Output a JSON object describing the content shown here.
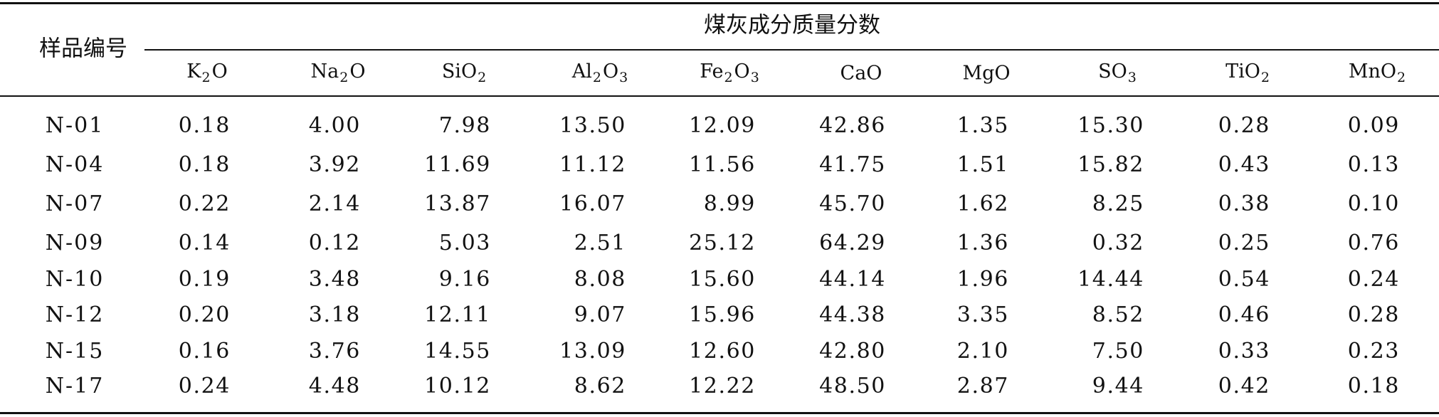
{
  "table": {
    "sample_header": "样品编号",
    "group_header": "煤灰成分质量分数",
    "columns": [
      {
        "base": "K",
        "sub": "2",
        "tail": "O"
      },
      {
        "base": "Na",
        "sub": "2",
        "tail": "O"
      },
      {
        "base": "SiO",
        "sub": "2",
        "tail": ""
      },
      {
        "base": "Al",
        "sub": "2",
        "tail": "O",
        "sub2": "3"
      },
      {
        "base": "Fe",
        "sub": "2",
        "tail": "O",
        "sub2": "3"
      },
      {
        "base": "CaO",
        "sub": "",
        "tail": ""
      },
      {
        "base": "MgO",
        "sub": "",
        "tail": ""
      },
      {
        "base": "SO",
        "sub": "3",
        "tail": ""
      },
      {
        "base": "TiO",
        "sub": "2",
        "tail": ""
      },
      {
        "base": "MnO",
        "sub": "2",
        "tail": ""
      }
    ],
    "rows": [
      {
        "sample": "N-01",
        "values": [
          "0.18",
          "4.00",
          "7.98",
          "13.50",
          "12.09",
          "42.86",
          "1.35",
          "15.30",
          "0.28",
          "0.09"
        ]
      },
      {
        "sample": "N-04",
        "values": [
          "0.18",
          "3.92",
          "11.69",
          "11.12",
          "11.56",
          "41.75",
          "1.51",
          "15.82",
          "0.43",
          "0.13"
        ]
      },
      {
        "sample": "N-07",
        "values": [
          "0.22",
          "2.14",
          "13.87",
          "16.07",
          "8.99",
          "45.70",
          "1.62",
          "8.25",
          "0.38",
          "0.10"
        ]
      },
      {
        "sample": "N-09",
        "values": [
          "0.14",
          "0.12",
          "5.03",
          "2.51",
          "25.12",
          "64.29",
          "1.36",
          "0.32",
          "0.25",
          "0.76"
        ]
      },
      {
        "sample": "N-10",
        "values": [
          "0.19",
          "3.48",
          "9.16",
          "8.08",
          "15.60",
          "44.14",
          "1.96",
          "14.44",
          "0.54",
          "0.24"
        ]
      },
      {
        "sample": "N-12",
        "values": [
          "0.20",
          "3.18",
          "12.11",
          "9.07",
          "15.96",
          "44.38",
          "3.35",
          "8.52",
          "0.46",
          "0.28"
        ]
      },
      {
        "sample": "N-15",
        "values": [
          "0.16",
          "3.76",
          "14.55",
          "13.09",
          "12.60",
          "42.80",
          "2.10",
          "7.50",
          "0.33",
          "0.23"
        ]
      },
      {
        "sample": "N-17",
        "values": [
          "0.24",
          "4.48",
          "10.12",
          "8.62",
          "12.22",
          "48.50",
          "2.87",
          "9.44",
          "0.42",
          "0.18"
        ]
      }
    ]
  }
}
